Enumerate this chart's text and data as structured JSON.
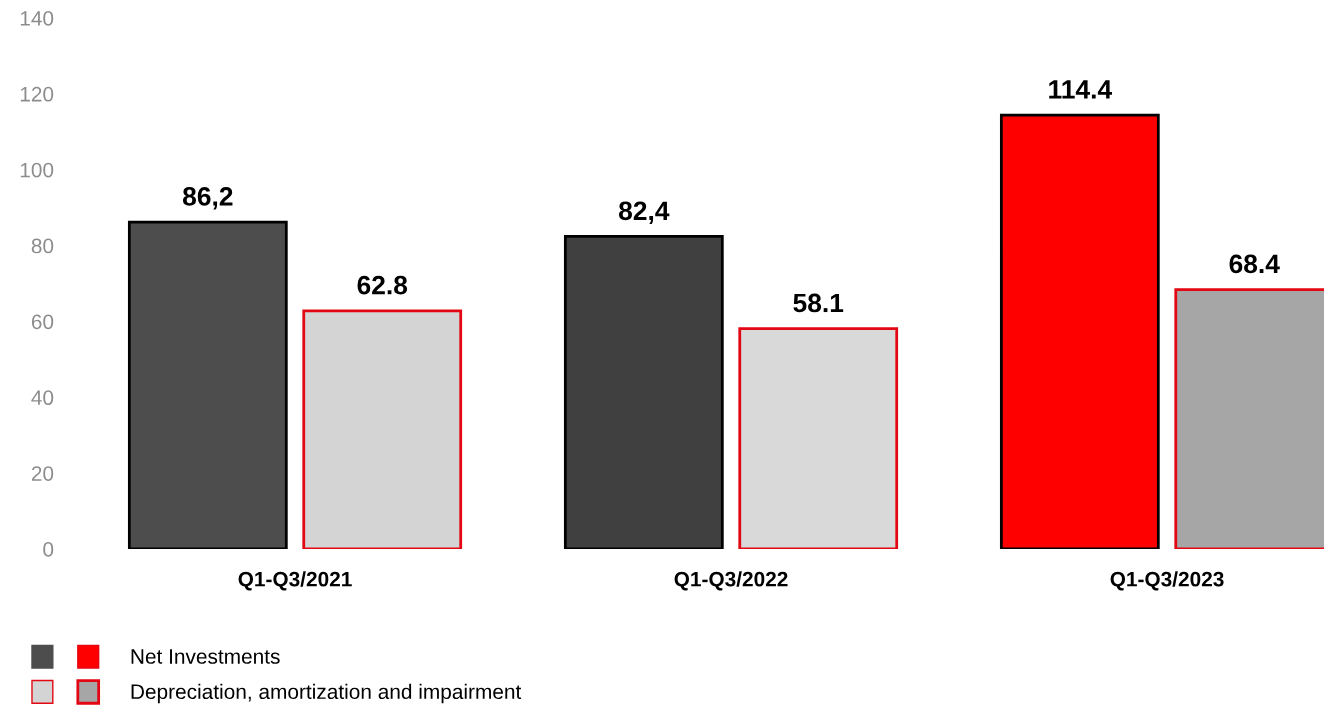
{
  "chart_data": {
    "type": "bar",
    "categories": [
      "Q1-Q3/2021",
      "Q1-Q3/2022",
      "Q1-Q3/2023"
    ],
    "series": [
      {
        "name": "Net Investments",
        "colors": [
          "#4d4d4d",
          "#404040",
          "#ff0000"
        ],
        "values": [
          86.2,
          82.4,
          114.4
        ],
        "value_labels": [
          "86,2",
          "82,4",
          "114.4"
        ]
      },
      {
        "name": "Depreciation, amortization and impairment",
        "colors": [
          "#d4d4d4",
          "#d9d9d9",
          "#a6a6a6"
        ],
        "values": [
          62.8,
          58.1,
          68.4
        ],
        "value_labels": [
          "62.8",
          "58.1",
          "68.4"
        ]
      }
    ],
    "ylim": [
      0,
      140
    ],
    "yticks": [
      0,
      20,
      40,
      60,
      80,
      100,
      120,
      140
    ],
    "grid": false,
    "legend": "bottom left"
  }
}
